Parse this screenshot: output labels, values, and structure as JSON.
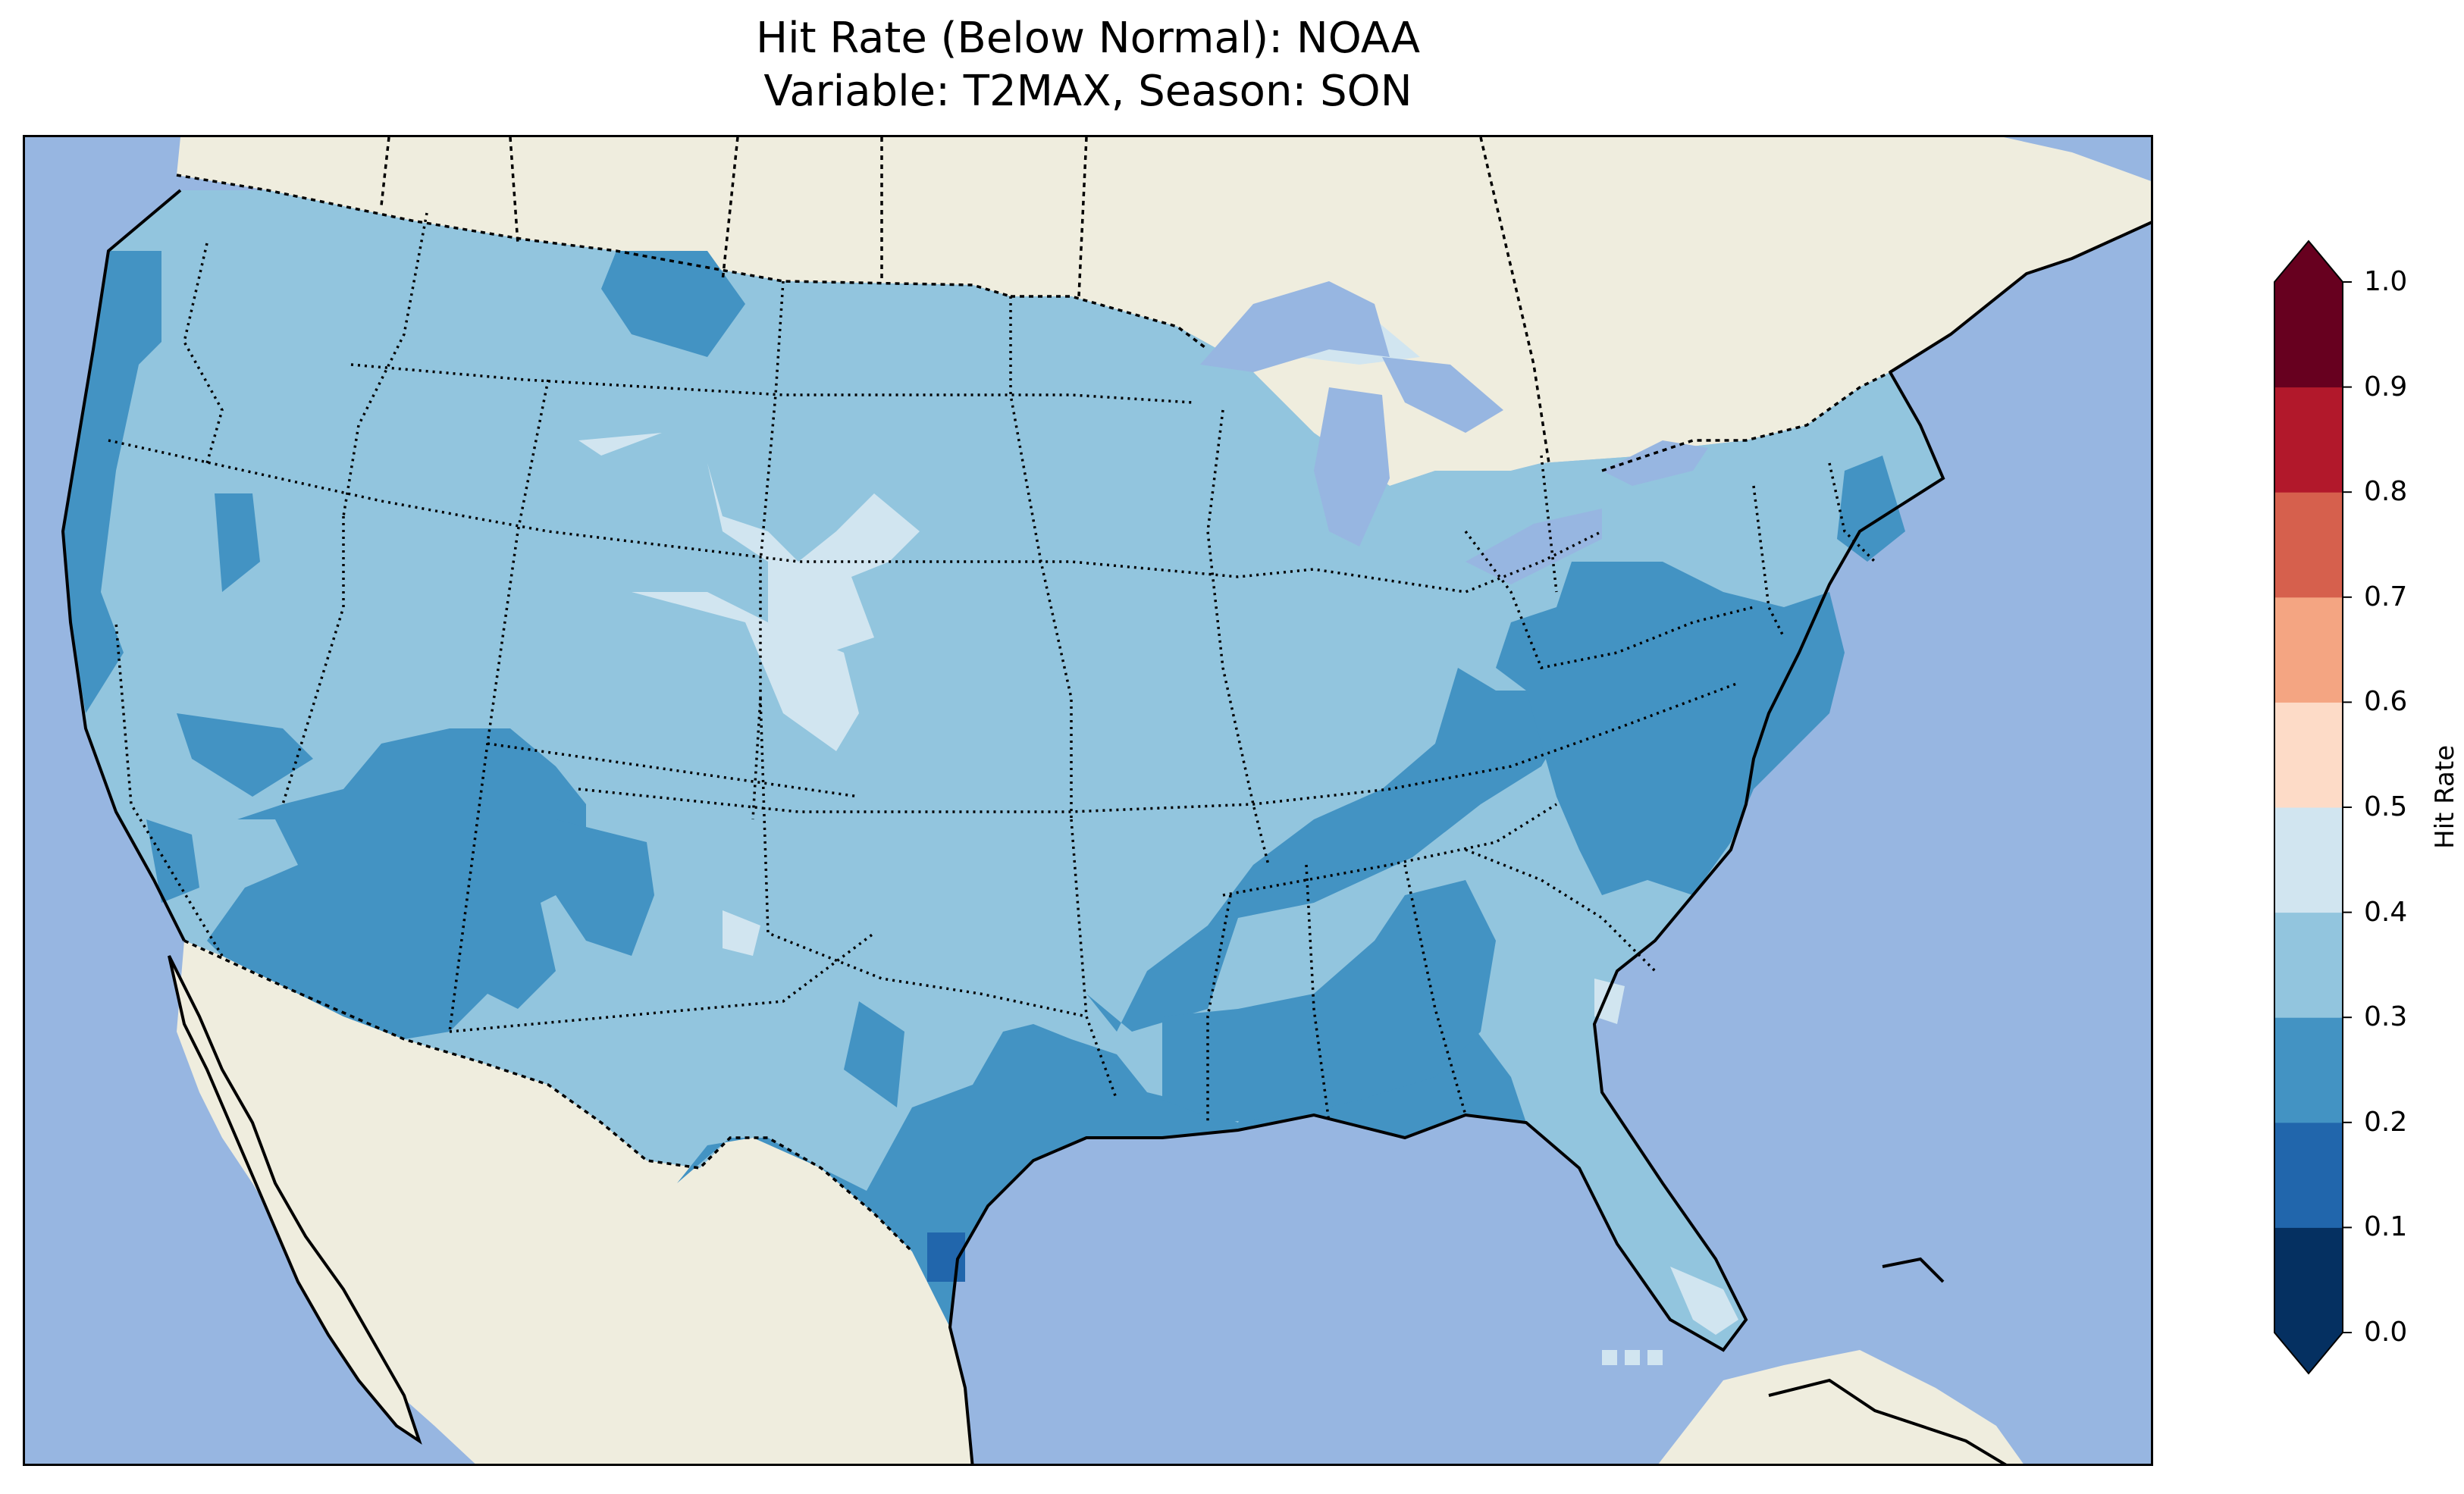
{
  "title": {
    "line1": "Hit Rate (Below Normal): NOAA",
    "line2": "Variable: T2MAX, Season: SON"
  },
  "map": {
    "ocean_color": "#97b6e1",
    "land_color": "#efedde",
    "region": "Contiguous United States",
    "state_borders": "dotted",
    "coastlines": "solid"
  },
  "colorbar": {
    "label": "Hit Rate",
    "extend": "both",
    "ticks": [
      "0.0",
      "0.1",
      "0.2",
      "0.3",
      "0.4",
      "0.5",
      "0.6",
      "0.7",
      "0.8",
      "0.9",
      "1.0"
    ],
    "bins": [
      {
        "range": [
          0.0,
          0.1
        ],
        "color": "#053061"
      },
      {
        "range": [
          0.1,
          0.2
        ],
        "color": "#2166ac"
      },
      {
        "range": [
          0.2,
          0.3
        ],
        "color": "#4393c3"
      },
      {
        "range": [
          0.3,
          0.4
        ],
        "color": "#92c5de"
      },
      {
        "range": [
          0.4,
          0.5
        ],
        "color": "#d1e5f0"
      },
      {
        "range": [
          0.5,
          0.6
        ],
        "color": "#fddbc7"
      },
      {
        "range": [
          0.6,
          0.7
        ],
        "color": "#f4a582"
      },
      {
        "range": [
          0.7,
          0.8
        ],
        "color": "#d6604d"
      },
      {
        "range": [
          0.8,
          0.9
        ],
        "color": "#b2182b"
      },
      {
        "range": [
          0.9,
          1.0
        ],
        "color": "#67001f"
      }
    ]
  }
}
